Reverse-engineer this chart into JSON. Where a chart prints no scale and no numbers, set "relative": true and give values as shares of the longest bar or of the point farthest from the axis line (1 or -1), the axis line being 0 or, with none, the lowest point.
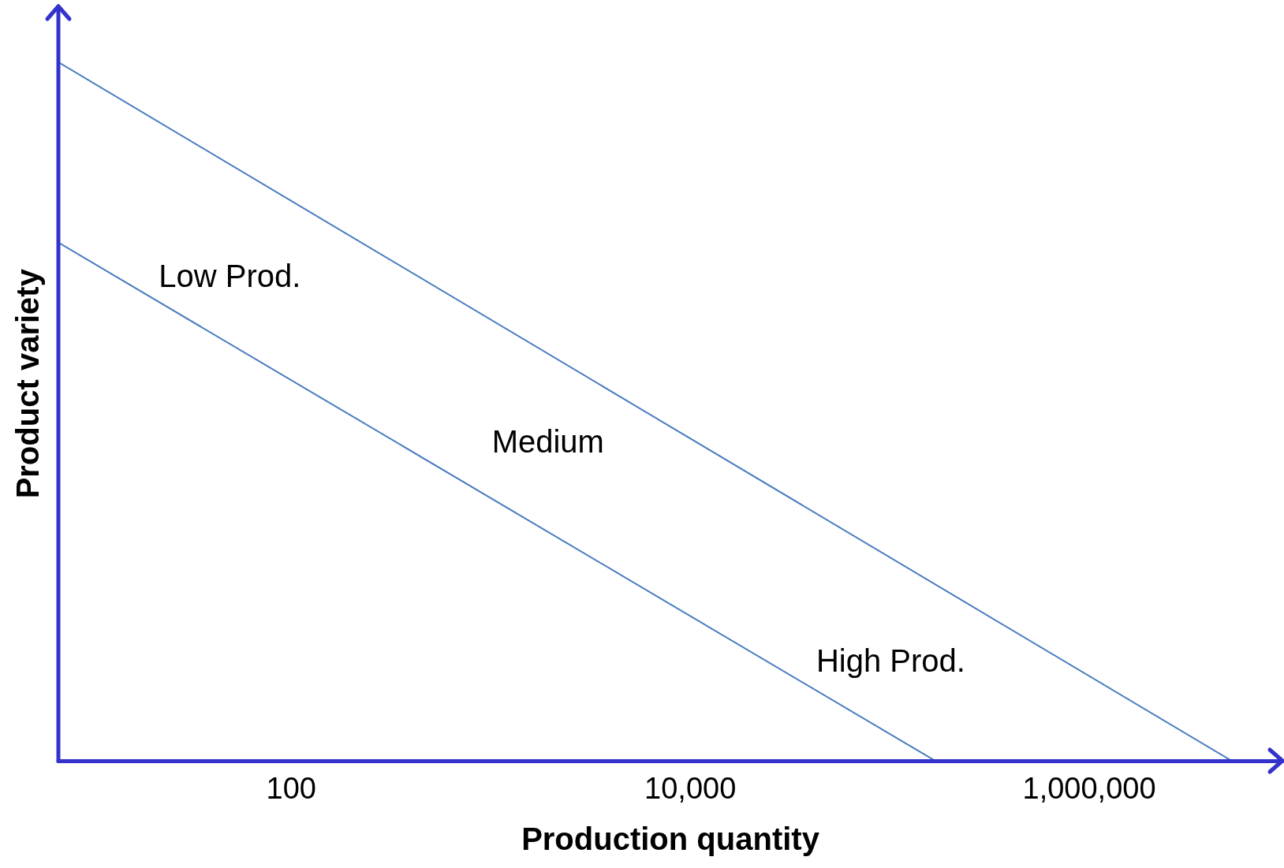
{
  "chart_data": {
    "type": "line",
    "relative": true,
    "xlabel": "Production quantity",
    "ylabel": "Product variety",
    "log": "x",
    "xlim": [
      6.8,
      9300000
    ],
    "xticks": [
      100,
      {
        "value": 10000,
        "label": "10,000"
      },
      {
        "value": 1000000,
        "label": "1,000,000"
      }
    ],
    "series": [
      {
        "x": [
          6.8,
          5200000
        ],
        "values": [
          1,
          0
        ],
        "color": "#4a7cc0"
      },
      {
        "x": [
          6.8,
          170000
        ],
        "values": [
          0.742,
          0
        ],
        "color": "#4a7cc0"
      }
    ],
    "annotations": [
      "Low Prod.",
      "Medium",
      "High Prod."
    ],
    "grid": false,
    "legend": false,
    "marker": "none",
    "line_style": "solid"
  }
}
